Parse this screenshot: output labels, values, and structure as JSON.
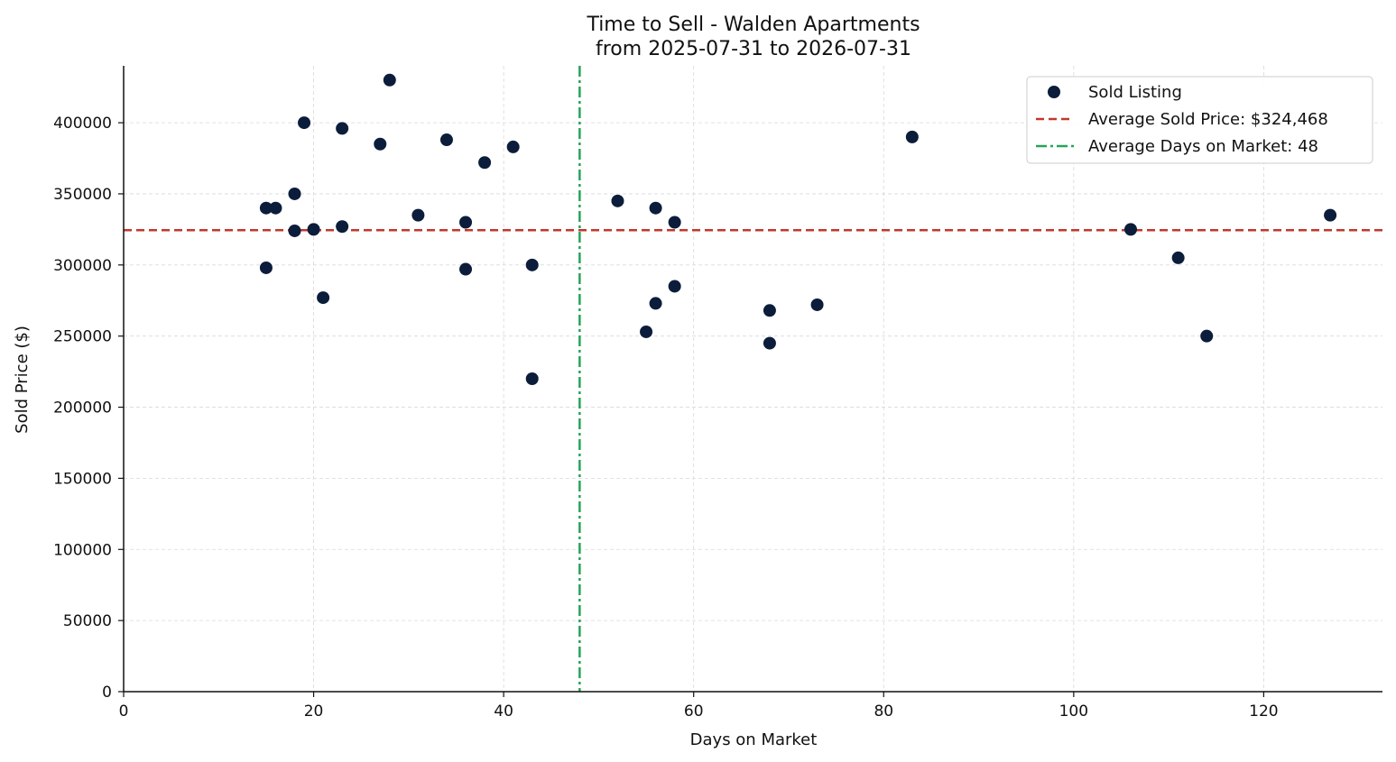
{
  "chart_data": {
    "type": "scatter",
    "title": "Time to Sell - Walden Apartments",
    "subtitle": "from 2025-07-31 to 2026-07-31",
    "xlabel": "Days on Market",
    "ylabel": "Sold Price ($)",
    "xlim": [
      0,
      132.5
    ],
    "ylim": [
      0,
      440000
    ],
    "xticks": [
      0,
      20,
      40,
      60,
      80,
      100,
      120
    ],
    "xtick_labels": [
      "0",
      "20",
      "40",
      "60",
      "80",
      "100",
      "120"
    ],
    "yticks": [
      0,
      50000,
      100000,
      150000,
      200000,
      250000,
      300000,
      350000,
      400000
    ],
    "ytick_labels": [
      "0",
      "50000",
      "100000",
      "150000",
      "200000",
      "250000",
      "300000",
      "350000",
      "400000"
    ],
    "grid": true,
    "legend_position": "top-right",
    "series": [
      {
        "name": "Sold Listing",
        "color": "#0b1d3a",
        "points": [
          [
            15,
            340000
          ],
          [
            15,
            298000
          ],
          [
            16,
            340000
          ],
          [
            18,
            350000
          ],
          [
            18,
            324000
          ],
          [
            19,
            400000
          ],
          [
            20,
            325000
          ],
          [
            21,
            277000
          ],
          [
            23,
            396000
          ],
          [
            23,
            327000
          ],
          [
            27,
            385000
          ],
          [
            28,
            430000
          ],
          [
            31,
            335000
          ],
          [
            34,
            388000
          ],
          [
            36,
            330000
          ],
          [
            36,
            297000
          ],
          [
            38,
            372000
          ],
          [
            41,
            383000
          ],
          [
            43,
            300000
          ],
          [
            43,
            220000
          ],
          [
            52,
            345000
          ],
          [
            55,
            253000
          ],
          [
            56,
            340000
          ],
          [
            56,
            273000
          ],
          [
            58,
            330000
          ],
          [
            58,
            285000
          ],
          [
            68,
            268000
          ],
          [
            68,
            245000
          ],
          [
            73,
            272000
          ],
          [
            83,
            390000
          ],
          [
            106,
            325000
          ],
          [
            111,
            305000
          ],
          [
            114,
            250000
          ],
          [
            127,
            335000
          ]
        ]
      }
    ],
    "reference_lines": [
      {
        "name": "Average Sold Price: $324,468",
        "orientation": "horizontal",
        "value": 324468,
        "color": "#c0392b",
        "style": "dashed"
      },
      {
        "name": "Average Days on Market: 48",
        "orientation": "vertical",
        "value": 48,
        "color": "#27a35a",
        "style": "dashdot"
      }
    ]
  }
}
